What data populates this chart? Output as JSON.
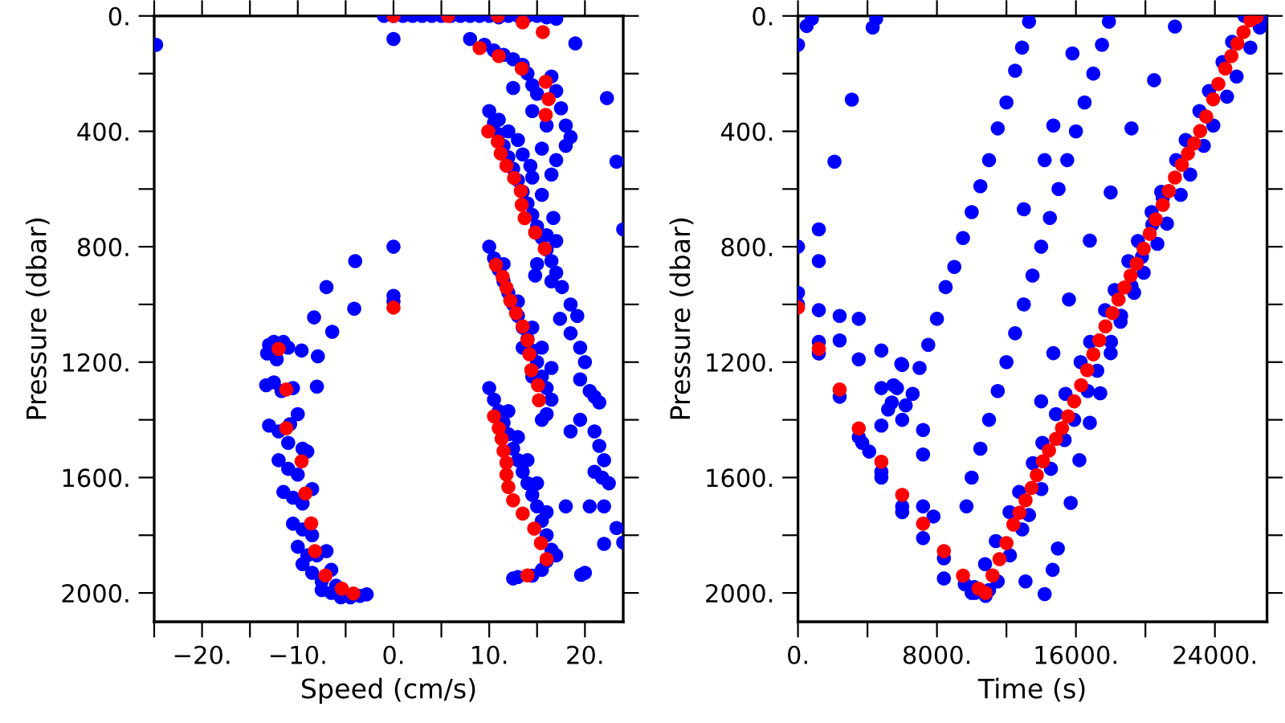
{
  "chart_data": [
    {
      "type": "scatter",
      "xlabel": "Speed (cm/s)",
      "ylabel": "Pressure (dbar)",
      "marker": "circle",
      "grid": false,
      "xlim": [
        -25,
        24
      ],
      "ylim": [
        2100,
        0
      ],
      "xticks": [
        {
          "value": -25,
          "label": null
        },
        {
          "value": -20,
          "label": "−20."
        },
        {
          "value": -15,
          "label": null
        },
        {
          "value": -10,
          "label": "−10."
        },
        {
          "value": -5,
          "label": null
        },
        {
          "value": 0,
          "label": "0."
        },
        {
          "value": 5,
          "label": null
        },
        {
          "value": 10,
          "label": "10."
        },
        {
          "value": 15,
          "label": null
        },
        {
          "value": 20,
          "label": "20."
        }
      ],
      "yticks": [
        {
          "value": 0,
          "label": "0."
        },
        {
          "value": 200,
          "label": null
        },
        {
          "value": 400,
          "label": "400."
        },
        {
          "value": 600,
          "label": null
        },
        {
          "value": 800,
          "label": "800."
        },
        {
          "value": 1000,
          "label": null
        },
        {
          "value": 1200,
          "label": "1200."
        },
        {
          "value": 1400,
          "label": null
        },
        {
          "value": 1600,
          "label": "1600."
        },
        {
          "value": 1800,
          "label": null
        },
        {
          "value": 2000,
          "label": "2000."
        }
      ],
      "series": [
        {
          "color": "#0000ff",
          "x": [
            -1,
            0,
            1,
            2,
            3,
            4,
            5,
            6,
            7,
            8,
            9,
            10,
            11,
            12,
            13,
            14,
            15,
            16,
            17,
            -24.8,
            0,
            19,
            8,
            9.5,
            10.5,
            11.5,
            12.5,
            13.5,
            14,
            14.5,
            15,
            16.5,
            17,
            17.5,
            14.5,
            16,
            18,
            18.5,
            15.5,
            17,
            18,
            14.3,
            16.5,
            12.5,
            22.3,
            23.3,
            24,
            10,
            10.5,
            11,
            11.5,
            12,
            12.5,
            13,
            13.5,
            14,
            14.5,
            15,
            15.5,
            16,
            16.5,
            17,
            15,
            14.8,
            16,
            17,
            16.7,
            15.5,
            14.5,
            13.5,
            12,
            11,
            13,
            16.5,
            17.6,
            18.5,
            19.2,
            17.4,
            18.5,
            19.5,
            20,
            19.5,
            20.5,
            21,
            21.5,
            19.5,
            21,
            21.5,
            22,
            21.8,
            22.5,
            21,
            22,
            20.5,
            18,
            18.5,
            10,
            10.5,
            11,
            11.5,
            12,
            12.5,
            13,
            13.5,
            14,
            14.5,
            15,
            15.5,
            16,
            16.5,
            16,
            15.5,
            11.5,
            13,
            14.5,
            15.5,
            16.5,
            13.5,
            14.5,
            10,
            10.5,
            11,
            11.5,
            12,
            12.5,
            13,
            13.5,
            14,
            14.5,
            15,
            15.5,
            16,
            16.5,
            16,
            12,
            13,
            14,
            15,
            16,
            17,
            13,
            12.5,
            14.5,
            15.5,
            19.6,
            20,
            22,
            23.3,
            24,
            0,
            0,
            0,
            -4,
            -7,
            -4.1,
            -8.3,
            -6.4,
            -9.6,
            -7.9,
            -8,
            -13,
            -12.5,
            -11.5,
            -13.2,
            -12.2,
            -11,
            -13.3,
            -12.5,
            -11.7,
            -10.5,
            -13,
            -12,
            -10.8,
            -10,
            -11,
            -9.5,
            -12,
            -11,
            -10,
            -9,
            -11.5,
            -10.5,
            -9.5,
            -8.5,
            -10.5,
            -9.5,
            -8.5,
            -10,
            -9,
            -8,
            -7,
            -9.5,
            -8.5,
            -7.5,
            -6.5,
            -7.5,
            -6.5,
            -5.5,
            -4.5,
            -3.5,
            -2.8,
            -6
          ],
          "values": [
            0,
            0,
            0,
            0,
            0,
            0,
            0,
            0,
            0,
            0,
            0,
            0,
            5,
            0,
            0,
            0,
            0,
            5,
            10,
            100,
            80,
            95,
            80,
            100,
            120,
            135,
            150,
            170,
            200,
            240,
            270,
            210,
            260,
            320,
            330,
            380,
            380,
            420,
            460,
            500,
            450,
            520,
            550,
            250,
            285,
            505,
            740,
            330,
            370,
            410,
            450,
            490,
            530,
            570,
            610,
            650,
            690,
            730,
            770,
            810,
            850,
            890,
            860,
            900,
            760,
            780,
            700,
            620,
            560,
            480,
            400,
            360,
            430,
            920,
            940,
            1000,
            1040,
            1050,
            1100,
            1150,
            1200,
            1260,
            1300,
            1320,
            1340,
            1400,
            1440,
            1490,
            1540,
            1600,
            1620,
            1580,
            1700,
            1700,
            1700,
            1440,
            800,
            840,
            880,
            920,
            960,
            1000,
            1040,
            1080,
            1120,
            1160,
            1200,
            1250,
            1290,
            1330,
            1380,
            1400,
            860,
            990,
            1080,
            1150,
            1220,
            1150,
            1250,
            1290,
            1330,
            1370,
            1410,
            1450,
            1500,
            1540,
            1580,
            1620,
            1660,
            1700,
            1750,
            1800,
            1850,
            1890,
            1370,
            1460,
            1540,
            1620,
            1720,
            1870,
            1945,
            1950,
            1940,
            1920,
            1937,
            1930,
            1830,
            1775,
            1825,
            800,
            970,
            990,
            850,
            940,
            1015,
            1045,
            1095,
            1160,
            1180,
            1285,
            1140,
            1130,
            1130,
            1170,
            1190,
            1150,
            1280,
            1270,
            1300,
            1290,
            1420,
            1440,
            1415,
            1380,
            1480,
            1500,
            1540,
            1570,
            1590,
            1510,
            1650,
            1670,
            1690,
            1640,
            1760,
            1780,
            1800,
            1840,
            1870,
            1870,
            1855,
            1900,
            1930,
            1960,
            1920,
            1990,
            2000,
            2015,
            2015,
            2010,
            2005,
            1975
          ]
        },
        {
          "color": "#ff0000",
          "x": [
            0,
            5.7,
            10.9,
            13.5,
            15.6,
            9,
            11,
            13.4,
            15.9,
            16.2,
            15.9,
            9.9,
            10.9,
            11.2,
            11.8,
            12.6,
            13.3,
            13.4,
            13.7,
            14.8,
            15.8,
            10.7,
            11.4,
            11.8,
            12.2,
            12.8,
            13.5,
            14,
            14.2,
            14.4,
            15.1,
            15.2,
            10.5,
            11,
            11.3,
            11.5,
            11.8,
            11.8,
            12,
            12.5,
            13.5,
            14.7,
            15.4,
            16,
            14,
            0,
            -12,
            -11.2,
            -11.2,
            -9.6,
            -9.2,
            -8.6,
            -8.2,
            -7.1,
            -5.4,
            -4.2
          ],
          "values": [
            0,
            0,
            0,
            22,
            56,
            111,
            139,
            182,
            228,
            288,
            343,
            400,
            436,
            477,
            519,
            562,
            607,
            655,
            701,
            751,
            807,
            863,
            904,
            942,
            987,
            1030,
            1076,
            1124,
            1173,
            1228,
            1280,
            1332,
            1388,
            1429,
            1466,
            1508,
            1549,
            1590,
            1633,
            1679,
            1725,
            1777,
            1827,
            1883,
            1939,
            1011,
            1154,
            1295,
            1429,
            1544,
            1655,
            1759,
            1855,
            1939,
            1985,
            2002
          ]
        }
      ]
    },
    {
      "type": "scatter",
      "xlabel": "Time (s)",
      "ylabel": "Pressure (dbar)",
      "marker": "circle",
      "grid": false,
      "xlim": [
        0,
        27000
      ],
      "ylim": [
        2100,
        0
      ],
      "xticks": [
        {
          "value": 0,
          "label": "0."
        },
        {
          "value": 4000,
          "label": null
        },
        {
          "value": 8000,
          "label": "8000."
        },
        {
          "value": 12000,
          "label": null
        },
        {
          "value": 16000,
          "label": "16000."
        },
        {
          "value": 20000,
          "label": null
        },
        {
          "value": 24000,
          "label": "24000."
        }
      ],
      "yticks": [
        {
          "value": 0,
          "label": "0."
        },
        {
          "value": 200,
          "label": null
        },
        {
          "value": 400,
          "label": "400."
        },
        {
          "value": 600,
          "label": null
        },
        {
          "value": 800,
          "label": "800."
        },
        {
          "value": 1000,
          "label": null
        },
        {
          "value": 1200,
          "label": "1200."
        },
        {
          "value": 1400,
          "label": null
        },
        {
          "value": 1600,
          "label": "1600."
        },
        {
          "value": 1800,
          "label": null
        },
        {
          "value": 2000,
          "label": "2000."
        }
      ],
      "series": [
        {
          "color": "#0000ff",
          "x": [
            0,
            0,
            0,
            0,
            1200,
            1200,
            1200,
            1200,
            1200,
            2400,
            2400,
            2400,
            3500,
            3500,
            3500,
            3700,
            4100,
            4800,
            4800,
            4800,
            4800,
            4800,
            5400,
            5700,
            6000,
            6000,
            6000,
            6000,
            7200,
            7200,
            7200,
            7200,
            7800,
            8400,
            8400,
            500,
            800,
            4300,
            4500,
            3100,
            2100,
            9600,
            10000,
            10200,
            10800,
            11000,
            13300,
            12900,
            12500,
            12000,
            11500,
            11000,
            10500,
            10000,
            9500,
            9000,
            8500,
            8000,
            7500,
            7000,
            6600,
            6200,
            5950,
            5500,
            5190,
            17900,
            17500,
            17000,
            16500,
            16000,
            15500,
            15000,
            14500,
            14000,
            13500,
            13000,
            12500,
            12000,
            11500,
            11000,
            10500,
            10000,
            9700,
            15800,
            14700,
            14200,
            13000,
            21700,
            20500,
            19200,
            18000,
            16800,
            15600,
            14700,
            14000,
            14660,
            14960,
            15700,
            16200,
            16800,
            17400,
            18000,
            18600,
            19200,
            19800,
            20400,
            21000,
            13100,
            14200,
            10140,
            10770,
            11390,
            12180,
            12730,
            13520,
            14070,
            14850,
            15400,
            16270,
            16820,
            17680,
            18230,
            19020,
            19570,
            20360,
            20910,
            21770,
            22320,
            23110,
            23660,
            24440,
            24990,
            25700,
            11500,
            12200,
            12910,
            13300,
            14010,
            14560,
            15350,
            15900,
            16680,
            17230,
            18020,
            18570,
            19350,
            19900,
            20690,
            21240,
            22030,
            22580,
            23360,
            23910,
            24700,
            25250,
            26040,
            26590,
            26820
          ],
          "values": [
            100,
            960,
            1000,
            800,
            740,
            850,
            1020,
            1130,
            1170,
            1040,
            1125,
            1320,
            1050,
            1190,
            1460,
            1480,
            1510,
            1160,
            1290,
            1420,
            1580,
            1600,
            1340,
            1290,
            1210,
            1400,
            1700,
            1720,
            1435,
            1520,
            1700,
            1810,
            1735,
            1880,
            1950,
            35,
            10,
            40,
            10,
            290,
            505,
            1970,
            2000,
            2000,
            2010,
            1990,
            20,
            110,
            190,
            300,
            390,
            500,
            590,
            680,
            770,
            870,
            940,
            1050,
            1140,
            1220,
            1310,
            1350,
            1206,
            1280,
            1364,
            20,
            100,
            200,
            300,
            400,
            500,
            600,
            700,
            800,
            900,
            1000,
            1100,
            1200,
            1300,
            1400,
            1500,
            1600,
            1700,
            130,
            380,
            500,
            670,
            37,
            223,
            390,
            612,
            779,
            983,
            1169,
            1336,
            1920,
            1846,
            1688,
            1540,
            1410,
            1308,
            1169,
            1039,
            937,
            835,
            723,
            631,
            1960,
            2004,
            1980,
            1900,
            1820,
            1720,
            1650,
            1550,
            1480,
            1380,
            1310,
            1200,
            1130,
            1020,
            950,
            850,
            780,
            680,
            610,
            500,
            430,
            330,
            260,
            160,
            90,
            0,
            1960,
            1870,
            1780,
            1730,
            1640,
            1570,
            1470,
            1400,
            1300,
            1230,
            1130,
            1060,
            960,
            890,
            790,
            720,
            620,
            550,
            450,
            380,
            280,
            210,
            110,
            40,
            10
          ]
        },
        {
          "color": "#ff0000",
          "x": [
            0,
            1200,
            2400,
            3500,
            4800,
            6000,
            7200,
            8400,
            9500,
            10400,
            10800,
            11200,
            11600,
            12000,
            12400,
            12750,
            13100,
            13450,
            13750,
            14100,
            14450,
            14850,
            15200,
            15550,
            15900,
            16300,
            16650,
            17000,
            17350,
            17700,
            18100,
            18450,
            18800,
            19150,
            19500,
            19900,
            20250,
            20600,
            21000,
            21350,
            21700,
            22100,
            22450,
            22800,
            23150,
            23500,
            23900,
            24200,
            24600,
            24950,
            25300,
            25650,
            26050,
            26400
          ],
          "values": [
            1011,
            1154,
            1295,
            1430,
            1545,
            1660,
            1760,
            1855,
            1940,
            1985,
            2000,
            1939,
            1883,
            1827,
            1763,
            1722,
            1679,
            1636,
            1592,
            1544,
            1506,
            1466,
            1429,
            1388,
            1336,
            1280,
            1228,
            1173,
            1124,
            1076,
            1030,
            983,
            941,
            900,
            859,
            807,
            755,
            705,
            655,
            607,
            560,
            516,
            477,
            442,
            399,
            349,
            289,
            236,
            182,
            139,
            96,
            56,
            15,
            4
          ]
        }
      ]
    }
  ]
}
